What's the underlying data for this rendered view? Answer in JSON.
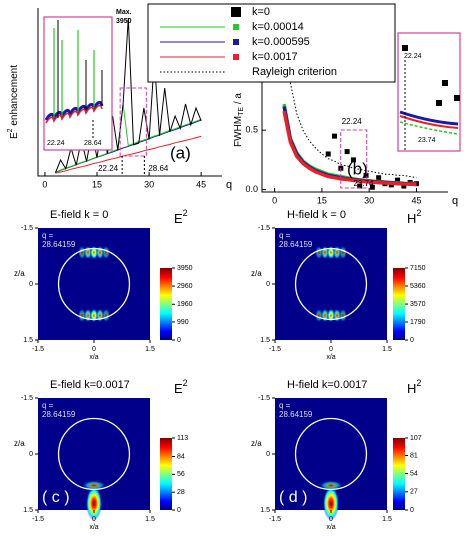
{
  "legend_source": 1,
  "chart_data": [
    {
      "type": "line",
      "ylabel": "E",
      "ylabel_sup": "2",
      "ylabel_tail": " enhancement",
      "xlabel": "q",
      "panel_label": "(a)",
      "max_label": [
        "Max.",
        "3950"
      ],
      "marks": [
        22.24,
        28.64
      ],
      "xlim": [
        -2,
        51
      ],
      "xticks": [
        0,
        15,
        30,
        45
      ],
      "ylim": [
        0,
        4200
      ],
      "x": [
        3,
        4.5,
        6,
        7.5,
        9,
        10.5,
        12,
        13.5,
        15,
        16.5,
        18,
        19.5,
        21,
        22.5,
        24,
        25.5,
        27,
        28.5,
        30,
        31.5,
        33,
        34.5,
        36,
        37.5,
        39,
        40.5,
        42,
        43.5,
        45
      ],
      "series": [
        {
          "color": "#1a1aa8",
          "style": "line",
          "values": [
            90,
            140,
            190,
            230,
            280,
            330,
            370,
            420,
            470,
            510,
            560,
            600,
            650,
            700,
            740,
            790,
            840,
            880,
            930,
            980,
            1020,
            1070,
            1120,
            1160,
            1210,
            1260,
            1300,
            1350,
            1400
          ]
        },
        {
          "color": "#22cc22",
          "style": "line",
          "values": [
            100,
            150,
            200,
            240,
            290,
            340,
            380,
            430,
            480,
            520,
            570,
            620,
            670,
            1800,
            760,
            810,
            860,
            900,
            950,
            1000,
            1040,
            1090,
            1140,
            1180,
            1230,
            1280,
            1320,
            1370,
            1420
          ]
        },
        {
          "color": "#e8202a",
          "style": "line",
          "values": [
            70,
            100,
            130,
            170,
            200,
            230,
            260,
            300,
            330,
            360,
            400,
            430,
            460,
            500,
            530,
            560,
            590,
            630,
            660,
            690,
            730,
            760,
            790,
            830,
            860,
            890,
            920,
            960,
            990
          ]
        },
        {
          "color": "#000000",
          "style": "line",
          "values": [
            80,
            400,
            180,
            700,
            270,
            900,
            360,
            1100,
            460,
            1300,
            550,
            1500,
            640,
            1800,
            3950,
            780,
            820,
            1700,
            910,
            2900,
            1000,
            2200,
            1100,
            1500,
            1190,
            1800,
            1280,
            1700,
            1380
          ]
        }
      ]
    },
    {
      "type": "scatter",
      "ylabel": "FWHM",
      "ylabel_sub": "TE",
      "ylabel_tail": " / a",
      "xlabel": "q",
      "panel_label": "(b)",
      "marks": [
        22.24,
        23.74
      ],
      "xlim": [
        -4,
        55
      ],
      "xticks": [
        0,
        15,
        30,
        45
      ],
      "ylim": [
        -0.02,
        1.36
      ],
      "yticks": [
        {
          "value": 0,
          "label": "0.0"
        },
        0.5,
        {
          "value": 1,
          "label": "1.0"
        }
      ],
      "x": [
        3,
        5,
        7,
        9,
        11,
        13,
        15,
        17,
        19,
        21,
        23,
        25,
        27,
        29,
        31,
        33,
        35,
        37,
        39,
        41,
        43,
        45
      ],
      "series": [
        {
          "name": "k=0",
          "color": "#000000",
          "style": "square",
          "values": [
            null,
            null,
            null,
            null,
            null,
            null,
            null,
            0.3,
            0.45,
            0.18,
            0.32,
            0.25,
            0.03,
            0.12,
            0.02,
            0.1,
            0.05,
            0.04,
            0.08,
            0.03,
            0.06,
            0.05
          ]
        },
        {
          "name": "k=0.00014",
          "color": "#22cc22",
          "style": "line",
          "values": [
            0.72,
            0.43,
            0.31,
            0.24,
            0.2,
            0.17,
            0.15,
            0.13,
            0.12,
            0.11,
            0.1,
            0.09,
            0.083,
            0.077,
            0.072,
            0.068,
            0.064,
            0.06,
            0.057,
            0.054,
            0.052,
            0.049
          ]
        },
        {
          "name": "k=0.000595",
          "color": "#1a1aa8",
          "style": "line",
          "values": [
            0.7,
            0.42,
            0.3,
            0.23,
            0.19,
            0.16,
            0.14,
            0.12,
            0.11,
            0.1,
            0.09,
            0.084,
            0.078,
            0.072,
            0.068,
            0.064,
            0.06,
            0.057,
            0.054,
            0.051,
            0.049,
            0.047
          ]
        },
        {
          "name": "k=0.0017",
          "color": "#e8202a",
          "style": "line",
          "values": [
            0.66,
            0.4,
            0.28,
            0.22,
            0.18,
            0.15,
            0.13,
            0.11,
            0.1,
            0.09,
            0.085,
            0.078,
            0.072,
            0.067,
            0.063,
            0.059,
            0.056,
            0.053,
            0.05,
            0.048,
            0.046,
            0.044
          ]
        },
        {
          "name": "Rayleigh criterion",
          "color": "#000000",
          "style": "dotted",
          "values": [
            null,
            0.9,
            0.64,
            0.5,
            0.41,
            0.35,
            0.3,
            0.26,
            0.24,
            0.21,
            0.2,
            0.18,
            0.17,
            0.16,
            0.15,
            0.14,
            0.13,
            0.13,
            0.12,
            0.12,
            0.11,
            0.1
          ]
        }
      ]
    },
    {
      "type": "heatmap",
      "title": "E-field k = 0",
      "cbar_label": "E",
      "cbar_sup": "2",
      "q_label": [
        "q =",
        "28.64159"
      ],
      "xlabel": "x/a",
      "ylabel": "z/a",
      "xlim": [
        -1.5,
        1.5
      ],
      "xticks": [
        -1.5,
        0,
        1.5
      ],
      "ylim": [
        -1.5,
        1.5
      ],
      "yticks": [
        -1.5,
        0,
        1.5
      ],
      "y_inverted": true,
      "cbar_lim": [
        0,
        3950
      ],
      "cbar_ticks": [
        0,
        990,
        1960,
        2960,
        3950
      ]
    },
    {
      "type": "heatmap",
      "title": "H-field k = 0",
      "cbar_label": "H",
      "cbar_sup": "2",
      "q_label": [
        "q =",
        "28.64159"
      ],
      "xlabel": "x/a",
      "ylabel": "z/a",
      "xlim": [
        -1.5,
        1.5
      ],
      "xticks": [
        -1.5,
        0,
        1.5
      ],
      "ylim": [
        -1.5,
        1.5
      ],
      "yticks": [
        -1.5,
        0,
        1.5
      ],
      "y_inverted": true,
      "cbar_lim": [
        0,
        7150
      ],
      "cbar_ticks": [
        0,
        1790,
        3570,
        5360,
        7150
      ]
    },
    {
      "type": "heatmap",
      "title": "E-field   k=0.0017",
      "cbar_label": "E",
      "cbar_sup": "2",
      "q_label": [
        "q =",
        "28.64159"
      ],
      "panel_label": "( c )",
      "xlabel": "x/a",
      "ylabel": "z/a",
      "xlim": [
        -1.5,
        1.5
      ],
      "xticks": [
        -1.5,
        0,
        1.5
      ],
      "ylim": [
        -1.5,
        1.5
      ],
      "yticks": [
        -1.5,
        0,
        1.5
      ],
      "y_inverted": true,
      "cbar_lim": [
        0,
        113
      ],
      "cbar_ticks": [
        0,
        28,
        56,
        84,
        113
      ]
    },
    {
      "type": "heatmap",
      "title": "H-field    k=0.0017",
      "cbar_label": "H",
      "cbar_sup": "2",
      "q_label": [
        "q =",
        "28.64159"
      ],
      "panel_label": "( d )",
      "xlabel": "x/a",
      "ylabel": "z/a",
      "xlim": [
        -1.5,
        1.5
      ],
      "xticks": [
        -1.5,
        0,
        1.5
      ],
      "ylim": [
        -1.5,
        1.5
      ],
      "yticks": [
        -1.5,
        0,
        1.5
      ],
      "y_inverted": true,
      "cbar_lim": [
        0,
        107
      ],
      "cbar_ticks": [
        0,
        27,
        54,
        81,
        107
      ]
    }
  ]
}
